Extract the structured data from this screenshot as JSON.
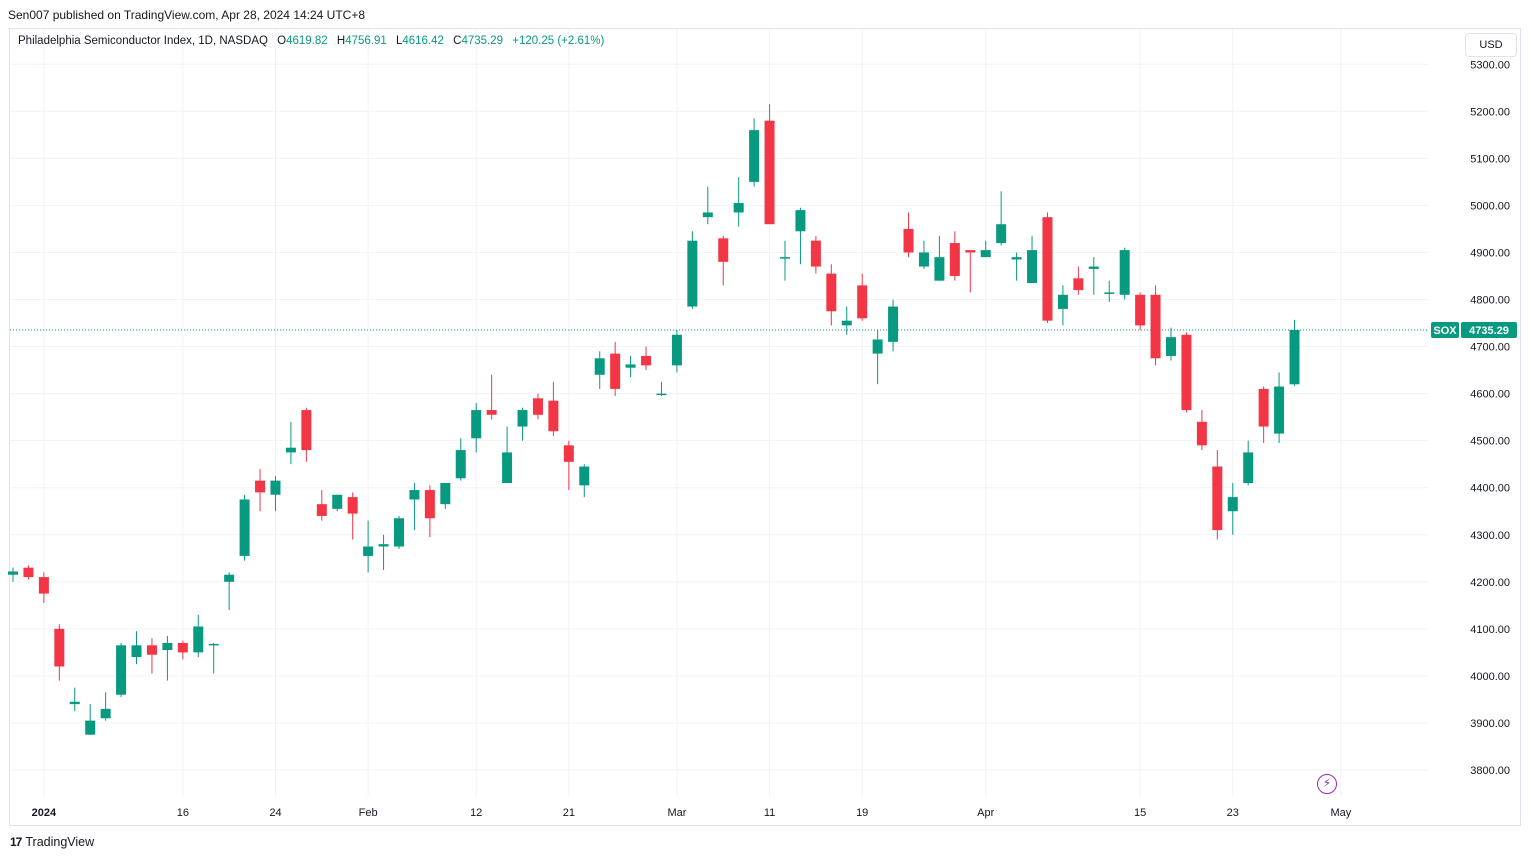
{
  "header": {
    "published": "Sen007 published on TradingView.com, Apr 28, 2024 14:24 UTC+8"
  },
  "legend": {
    "symbol_name": "Philadelphia Semiconductor Index, 1D, NASDAQ",
    "o_label": "O",
    "o_value": "4619.82",
    "h_label": "H",
    "h_value": "4756.91",
    "l_label": "L",
    "l_value": "4616.42",
    "c_label": "C",
    "c_value": "4735.29",
    "change": "+120.25 (+2.61%)"
  },
  "currency_button": "USD",
  "footer": {
    "brand": "TradingView",
    "logo_mark": "17"
  },
  "colors": {
    "up": "#089981",
    "down": "#f23645",
    "grid": "#f0f3fa",
    "price_line": "#089981",
    "axis_text": "#131722"
  },
  "icons": {
    "flash": "lightning-icon"
  },
  "chart_data": {
    "type": "candlestick",
    "title": "Philadelphia Semiconductor Index, 1D, NASDAQ",
    "y_axis": {
      "position": "right",
      "range": [
        3740,
        5330
      ],
      "ticks": [
        "5300.00",
        "5200.00",
        "5100.00",
        "5000.00",
        "4900.00",
        "4800.00",
        "4700.00",
        "4600.00",
        "4500.00",
        "4400.00",
        "4300.00",
        "4200.00",
        "4100.00",
        "4000.00",
        "3900.00",
        "3800.00"
      ]
    },
    "x_ticks": [
      {
        "label": "2024",
        "date": "2024-01-02",
        "bold": true
      },
      {
        "label": "16",
        "date": "2024-01-16"
      },
      {
        "label": "24",
        "date": "2024-01-24"
      },
      {
        "label": "Feb",
        "date": "2024-02-01"
      },
      {
        "label": "12",
        "date": "2024-02-12"
      },
      {
        "label": "21",
        "date": "2024-02-21"
      },
      {
        "label": "Mar",
        "date": "2024-03-01"
      },
      {
        "label": "11",
        "date": "2024-03-11"
      },
      {
        "label": "19",
        "date": "2024-03-19"
      },
      {
        "label": "Apr",
        "date": "2024-04-01"
      },
      {
        "label": "15",
        "date": "2024-04-15"
      },
      {
        "label": "23",
        "date": "2024-04-23"
      },
      {
        "label": "May",
        "date": "2024-05-01"
      }
    ],
    "last_price": {
      "symbol": "SOX",
      "value": "4735.29"
    },
    "candles": [
      {
        "d": "2023-12-28",
        "o": 4215,
        "h": 4230,
        "l": 4200,
        "c": 4222
      },
      {
        "d": "2023-12-29",
        "o": 4230,
        "h": 4235,
        "l": 4205,
        "c": 4210
      },
      {
        "d": "2024-01-02",
        "o": 4210,
        "h": 4220,
        "l": 4155,
        "c": 4175
      },
      {
        "d": "2024-01-03",
        "o": 4100,
        "h": 4110,
        "l": 3990,
        "c": 4020
      },
      {
        "d": "2024-01-04",
        "o": 3940,
        "h": 3975,
        "l": 3925,
        "c": 3945
      },
      {
        "d": "2024-01-05",
        "o": 3875,
        "h": 3940,
        "l": 3875,
        "c": 3905
      },
      {
        "d": "2024-01-08",
        "o": 3910,
        "h": 3965,
        "l": 3905,
        "c": 3930
      },
      {
        "d": "2024-01-09",
        "o": 3960,
        "h": 4070,
        "l": 3955,
        "c": 4065
      },
      {
        "d": "2024-01-10",
        "o": 4040,
        "h": 4095,
        "l": 4025,
        "c": 4065
      },
      {
        "d": "2024-01-11",
        "o": 4065,
        "h": 4080,
        "l": 4005,
        "c": 4045
      },
      {
        "d": "2024-01-12",
        "o": 4055,
        "h": 4085,
        "l": 3990,
        "c": 4070
      },
      {
        "d": "2024-01-16",
        "o": 4070,
        "h": 4075,
        "l": 4035,
        "c": 4050
      },
      {
        "d": "2024-01-17",
        "o": 4050,
        "h": 4130,
        "l": 4040,
        "c": 4105
      },
      {
        "d": "2024-01-18",
        "o": 4065,
        "h": 4070,
        "l": 4005,
        "c": 4068
      },
      {
        "d": "2024-01-19",
        "o": 4200,
        "h": 4220,
        "l": 4140,
        "c": 4215
      },
      {
        "d": "2024-01-22",
        "o": 4255,
        "h": 4385,
        "l": 4245,
        "c": 4375
      },
      {
        "d": "2024-01-23",
        "o": 4415,
        "h": 4440,
        "l": 4350,
        "c": 4390
      },
      {
        "d": "2024-01-24",
        "o": 4385,
        "h": 4425,
        "l": 4350,
        "c": 4415
      },
      {
        "d": "2024-01-25",
        "o": 4475,
        "h": 4540,
        "l": 4450,
        "c": 4485
      },
      {
        "d": "2024-01-26",
        "o": 4565,
        "h": 4570,
        "l": 4455,
        "c": 4480
      },
      {
        "d": "2024-01-29",
        "o": 4365,
        "h": 4395,
        "l": 4330,
        "c": 4340
      },
      {
        "d": "2024-01-30",
        "o": 4355,
        "h": 4385,
        "l": 4350,
        "c": 4385
      },
      {
        "d": "2024-01-31",
        "o": 4380,
        "h": 4390,
        "l": 4290,
        "c": 4345
      },
      {
        "d": "2024-02-01",
        "o": 4255,
        "h": 4330,
        "l": 4220,
        "c": 4275
      },
      {
        "d": "2024-02-02",
        "o": 4275,
        "h": 4300,
        "l": 4225,
        "c": 4280
      },
      {
        "d": "2024-02-05",
        "o": 4275,
        "h": 4340,
        "l": 4270,
        "c": 4335
      },
      {
        "d": "2024-02-06",
        "o": 4375,
        "h": 4410,
        "l": 4310,
        "c": 4395
      },
      {
        "d": "2024-02-07",
        "o": 4395,
        "h": 4405,
        "l": 4295,
        "c": 4335
      },
      {
        "d": "2024-02-08",
        "o": 4365,
        "h": 4410,
        "l": 4355,
        "c": 4410
      },
      {
        "d": "2024-02-09",
        "o": 4420,
        "h": 4505,
        "l": 4415,
        "c": 4480
      },
      {
        "d": "2024-02-12",
        "o": 4505,
        "h": 4580,
        "l": 4475,
        "c": 4565
      },
      {
        "d": "2024-02-13",
        "o": 4565,
        "h": 4640,
        "l": 4545,
        "c": 4555
      },
      {
        "d": "2024-02-14",
        "o": 4410,
        "h": 4530,
        "l": 4410,
        "c": 4475
      },
      {
        "d": "2024-02-15",
        "o": 4530,
        "h": 4570,
        "l": 4500,
        "c": 4565
      },
      {
        "d": "2024-02-16",
        "o": 4590,
        "h": 4600,
        "l": 4545,
        "c": 4555
      },
      {
        "d": "2024-02-20",
        "o": 4585,
        "h": 4625,
        "l": 4510,
        "c": 4520
      },
      {
        "d": "2024-02-21",
        "o": 4490,
        "h": 4500,
        "l": 4395,
        "c": 4455
      },
      {
        "d": "2024-02-22",
        "o": 4405,
        "h": 4450,
        "l": 4380,
        "c": 4445
      },
      {
        "d": "2024-02-23",
        "o": 4640,
        "h": 4690,
        "l": 4610,
        "c": 4675
      },
      {
        "d": "2024-02-26",
        "o": 4685,
        "h": 4710,
        "l": 4595,
        "c": 4610
      },
      {
        "d": "2024-02-27",
        "o": 4655,
        "h": 4680,
        "l": 4635,
        "c": 4662
      },
      {
        "d": "2024-02-28",
        "o": 4680,
        "h": 4700,
        "l": 4650,
        "c": 4660
      },
      {
        "d": "2024-02-29",
        "o": 4600,
        "h": 4625,
        "l": 4595,
        "c": 4600
      },
      {
        "d": "2024-03-01",
        "o": 4660,
        "h": 4735,
        "l": 4645,
        "c": 4725
      },
      {
        "d": "2024-03-04",
        "o": 4785,
        "h": 4945,
        "l": 4780,
        "c": 4925
      },
      {
        "d": "2024-03-05",
        "o": 4975,
        "h": 5040,
        "l": 4960,
        "c": 4985
      },
      {
        "d": "2024-03-06",
        "o": 4930,
        "h": 4935,
        "l": 4830,
        "c": 4880
      },
      {
        "d": "2024-03-07",
        "o": 4985,
        "h": 5060,
        "l": 4955,
        "c": 5005
      },
      {
        "d": "2024-03-08",
        "o": 5050,
        "h": 5185,
        "l": 5040,
        "c": 5160
      },
      {
        "d": "2024-03-11",
        "o": 5180,
        "h": 5215,
        "l": 4960,
        "c": 4960
      },
      {
        "d": "2024-03-12",
        "o": 4890,
        "h": 4925,
        "l": 4840,
        "c": 4890
      },
      {
        "d": "2024-03-13",
        "o": 4945,
        "h": 4995,
        "l": 4875,
        "c": 4990
      },
      {
        "d": "2024-03-14",
        "o": 4925,
        "h": 4935,
        "l": 4855,
        "c": 4870
      },
      {
        "d": "2024-03-15",
        "o": 4855,
        "h": 4875,
        "l": 4745,
        "c": 4775
      },
      {
        "d": "2024-03-18",
        "o": 4745,
        "h": 4785,
        "l": 4725,
        "c": 4755
      },
      {
        "d": "2024-03-19",
        "o": 4830,
        "h": 4855,
        "l": 4755,
        "c": 4760
      },
      {
        "d": "2024-03-20",
        "o": 4685,
        "h": 4735,
        "l": 4620,
        "c": 4715
      },
      {
        "d": "2024-03-21",
        "o": 4710,
        "h": 4800,
        "l": 4690,
        "c": 4785
      },
      {
        "d": "2024-03-22",
        "o": 4950,
        "h": 4985,
        "l": 4890,
        "c": 4900
      },
      {
        "d": "2024-03-25",
        "o": 4870,
        "h": 4925,
        "l": 4865,
        "c": 4900
      },
      {
        "d": "2024-03-26",
        "o": 4840,
        "h": 4935,
        "l": 4840,
        "c": 4890
      },
      {
        "d": "2024-03-27",
        "o": 4920,
        "h": 4945,
        "l": 4840,
        "c": 4850
      },
      {
        "d": "2024-03-28",
        "o": 4905,
        "h": 4900,
        "l": 4815,
        "c": 4900
      },
      {
        "d": "2024-04-01",
        "o": 4890,
        "h": 4925,
        "l": 4890,
        "c": 4905
      },
      {
        "d": "2024-04-02",
        "o": 4920,
        "h": 5030,
        "l": 4915,
        "c": 4960
      },
      {
        "d": "2024-04-03",
        "o": 4885,
        "h": 4900,
        "l": 4840,
        "c": 4890
      },
      {
        "d": "2024-04-04",
        "o": 4835,
        "h": 4935,
        "l": 4835,
        "c": 4905
      },
      {
        "d": "2024-04-05",
        "o": 4975,
        "h": 4985,
        "l": 4750,
        "c": 4755
      },
      {
        "d": "2024-04-08",
        "o": 4780,
        "h": 4830,
        "l": 4745,
        "c": 4810
      },
      {
        "d": "2024-04-09",
        "o": 4845,
        "h": 4870,
        "l": 4810,
        "c": 4820
      },
      {
        "d": "2024-04-10",
        "o": 4865,
        "h": 4890,
        "l": 4810,
        "c": 4870
      },
      {
        "d": "2024-04-11",
        "o": 4815,
        "h": 4840,
        "l": 4795,
        "c": 4815
      },
      {
        "d": "2024-04-12",
        "o": 4810,
        "h": 4910,
        "l": 4800,
        "c": 4905
      },
      {
        "d": "2024-04-15",
        "o": 4810,
        "h": 4815,
        "l": 4735,
        "c": 4745
      },
      {
        "d": "2024-04-16",
        "o": 4810,
        "h": 4830,
        "l": 4660,
        "c": 4675
      },
      {
        "d": "2024-04-17",
        "o": 4680,
        "h": 4740,
        "l": 4670,
        "c": 4720
      },
      {
        "d": "2024-04-18",
        "o": 4725,
        "h": 4730,
        "l": 4560,
        "c": 4565
      },
      {
        "d": "2024-04-19",
        "o": 4540,
        "h": 4565,
        "l": 4480,
        "c": 4490
      },
      {
        "d": "2024-04-22",
        "o": 4445,
        "h": 4480,
        "l": 4290,
        "c": 4310
      },
      {
        "d": "2024-04-23",
        "o": 4350,
        "h": 4410,
        "l": 4300,
        "c": 4380
      },
      {
        "d": "2024-04-24",
        "o": 4410,
        "h": 4500,
        "l": 4405,
        "c": 4475
      },
      {
        "d": "2024-04-25",
        "o": 4610,
        "h": 4615,
        "l": 4495,
        "c": 4530
      },
      {
        "d": "2024-04-26",
        "o": 4515,
        "h": 4645,
        "l": 4495,
        "c": 4615
      },
      {
        "d": "2024-04-29",
        "o": 4619.82,
        "h": 4756.91,
        "l": 4616.42,
        "c": 4735.29
      }
    ]
  }
}
